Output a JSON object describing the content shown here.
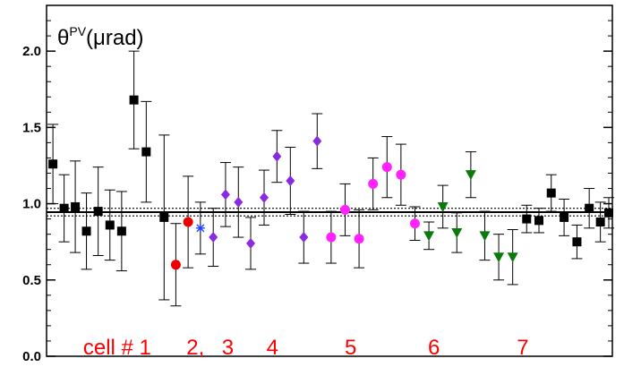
{
  "chart_data": {
    "type": "scatter",
    "title": "θ^PV(μrad)",
    "title_parts": {
      "base": "θ",
      "sup": "PV",
      "tail": "(μrad)"
    },
    "xlabel": "",
    "ylabel": "",
    "ylim": [
      0,
      2.3
    ],
    "xlim": [
      0,
      1
    ],
    "y_ticks": [
      0.0,
      0.5,
      1.0,
      1.5,
      2.0
    ],
    "y_tick_labels": [
      "0.0",
      "0.5",
      "1.0",
      "1.5",
      "2.0"
    ],
    "grid": false,
    "legend": "none",
    "mean_line": {
      "value": 0.945,
      "band": [
        0.92,
        0.97
      ],
      "color": "#000000"
    },
    "annotations": [
      {
        "text": "cell # 1",
        "x": 0.12,
        "y": 0.06,
        "color": "#ff0000"
      },
      {
        "text": "2,",
        "x": 0.26,
        "y": 0.06,
        "color": "#ff0000"
      },
      {
        "text": "3",
        "x": 0.318,
        "y": 0.06,
        "color": "#ff0000"
      },
      {
        "text": "4",
        "x": 0.398,
        "y": 0.06,
        "color": "#ff0000"
      },
      {
        "text": "5",
        "x": 0.538,
        "y": 0.06,
        "color": "#ff0000"
      },
      {
        "text": "6",
        "x": 0.687,
        "y": 0.06,
        "color": "#ff0000"
      },
      {
        "text": "7",
        "x": 0.846,
        "y": 0.06,
        "color": "#ff0000"
      }
    ],
    "series": [
      {
        "cell": "1",
        "marker": "square",
        "color": "#000000",
        "points": [
          {
            "x": 0.005,
            "y": 1.26,
            "err": 0.26
          },
          {
            "x": 0.025,
            "y": 0.97,
            "err": 0.22
          },
          {
            "x": 0.045,
            "y": 0.98,
            "err": 0.3
          },
          {
            "x": 0.065,
            "y": 0.82,
            "err": 0.25
          },
          {
            "x": 0.086,
            "y": 0.95,
            "err": 0.29
          },
          {
            "x": 0.107,
            "y": 0.86,
            "err": 0.23
          },
          {
            "x": 0.128,
            "y": 0.82,
            "err": 0.26
          },
          {
            "x": 0.15,
            "y": 1.68,
            "err": 0.32
          },
          {
            "x": 0.172,
            "y": 1.34,
            "err": 0.33
          },
          {
            "x": 0.204,
            "y": 0.91,
            "err": 0.54
          }
        ]
      },
      {
        "cell": "2",
        "marker": "circle",
        "color": "#ee0000",
        "points": [
          {
            "x": 0.225,
            "y": 0.6,
            "err": 0.27
          },
          {
            "x": 0.247,
            "y": 0.88,
            "err": 0.3
          }
        ]
      },
      {
        "cell": "3",
        "marker": "asterisk",
        "color": "#2244ff",
        "points": [
          {
            "x": 0.269,
            "y": 0.84,
            "err": 0.17
          }
        ]
      },
      {
        "cell": "4",
        "marker": "diamond",
        "color": "#8a2be2",
        "points": [
          {
            "x": 0.292,
            "y": 0.78,
            "err": 0.19
          },
          {
            "x": 0.314,
            "y": 1.06,
            "err": 0.21
          },
          {
            "x": 0.337,
            "y": 1.01,
            "err": 0.23
          },
          {
            "x": 0.359,
            "y": 0.74,
            "err": 0.17
          },
          {
            "x": 0.383,
            "y": 1.04,
            "err": 0.18
          },
          {
            "x": 0.406,
            "y": 1.31,
            "err": 0.17
          },
          {
            "x": 0.43,
            "y": 1.15,
            "err": 0.22
          },
          {
            "x": 0.454,
            "y": 0.78,
            "err": 0.17
          },
          {
            "x": 0.478,
            "y": 1.41,
            "err": 0.18
          }
        ]
      },
      {
        "cell": "5",
        "marker": "circle",
        "color": "#ff22ff",
        "points": [
          {
            "x": 0.503,
            "y": 0.78,
            "err": 0.17
          },
          {
            "x": 0.528,
            "y": 0.96,
            "err": 0.17
          },
          {
            "x": 0.553,
            "y": 0.77,
            "err": 0.19
          },
          {
            "x": 0.578,
            "y": 1.13,
            "err": 0.17
          },
          {
            "x": 0.603,
            "y": 1.24,
            "err": 0.2
          },
          {
            "x": 0.628,
            "y": 1.19,
            "err": 0.2
          },
          {
            "x": 0.653,
            "y": 0.87,
            "err": 0.11
          }
        ]
      },
      {
        "cell": "6",
        "marker": "triangle-down",
        "color": "#0a7a0a",
        "points": [
          {
            "x": 0.678,
            "y": 0.79,
            "err": 0.09
          },
          {
            "x": 0.703,
            "y": 0.98,
            "err": 0.14
          },
          {
            "x": 0.728,
            "y": 0.81,
            "err": 0.13
          },
          {
            "x": 0.753,
            "y": 1.19,
            "err": 0.15
          },
          {
            "x": 0.778,
            "y": 0.79,
            "err": 0.16
          },
          {
            "x": 0.803,
            "y": 0.65,
            "err": 0.15
          },
          {
            "x": 0.828,
            "y": 0.65,
            "err": 0.18
          }
        ]
      },
      {
        "cell": "7",
        "marker": "square",
        "color": "#000000",
        "points": [
          {
            "x": 0.853,
            "y": 0.9,
            "err": 0.09
          },
          {
            "x": 0.875,
            "y": 0.89,
            "err": 0.08
          },
          {
            "x": 0.897,
            "y": 1.07,
            "err": 0.12
          },
          {
            "x": 0.92,
            "y": 0.91,
            "err": 0.12
          },
          {
            "x": 0.943,
            "y": 0.75,
            "err": 0.11
          },
          {
            "x": 0.965,
            "y": 0.97,
            "err": 0.13
          },
          {
            "x": 0.985,
            "y": 0.88,
            "err": 0.13
          },
          {
            "x": 1.0,
            "y": 0.94,
            "err": 0.1
          }
        ]
      }
    ]
  }
}
